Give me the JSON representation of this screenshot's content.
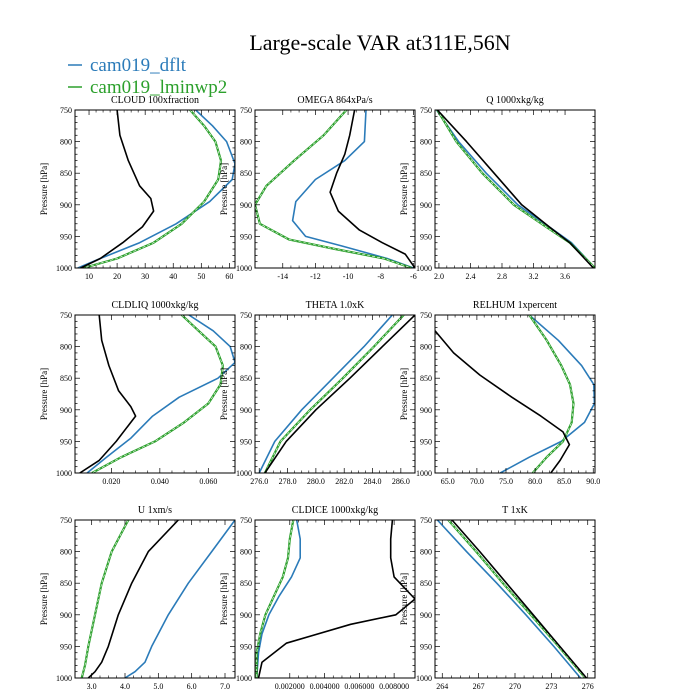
{
  "figure": {
    "title": "Large-scale VAR at311E,56N",
    "legend": [
      {
        "label": "cam019_dflt",
        "color": "#2b7bb9"
      },
      {
        "label": "cam019_lminwp2",
        "color": "#2ca02c"
      }
    ],
    "control_color": "#000000"
  },
  "chart_data": [
    {
      "type": "line",
      "title": "CLOUD  100xfraction",
      "ylabel": "Pressure [hPa]",
      "xlim": [
        5,
        62
      ],
      "ylim": [
        1000,
        750
      ],
      "xticks": [
        10,
        20,
        30,
        40,
        50,
        60
      ],
      "xticklabels": [
        "10",
        "20",
        "30",
        "40",
        "50",
        "60"
      ],
      "yticks": [
        750,
        800,
        850,
        900,
        950,
        1000
      ],
      "series": [
        {
          "name": "cam019_dflt",
          "color": "#2b7bb9",
          "x": [
            48,
            54,
            59,
            62,
            61,
            53,
            41,
            28,
            14,
            6
          ],
          "y": [
            750,
            775,
            800,
            835,
            860,
            895,
            930,
            960,
            985,
            1000
          ]
        },
        {
          "name": "cam019_lminwp2",
          "color": "#2ca02c",
          "dashed": true,
          "x": [
            46,
            51,
            55,
            57,
            56,
            51,
            43,
            33,
            20,
            8
          ],
          "y": [
            750,
            775,
            800,
            830,
            860,
            895,
            930,
            960,
            985,
            1000
          ]
        },
        {
          "name": "control",
          "color": "#000000",
          "x": [
            20,
            21,
            24,
            28,
            32,
            33,
            29,
            22,
            14,
            7
          ],
          "y": [
            750,
            790,
            830,
            870,
            890,
            910,
            935,
            960,
            985,
            1000
          ]
        }
      ]
    },
    {
      "type": "line",
      "title": "OMEGA  864xPa/s",
      "ylabel": "",
      "xlim": [
        -15.7,
        -5.9
      ],
      "ylim": [
        1000,
        750
      ],
      "xticks": [
        -14,
        -12,
        -10,
        -8,
        -6
      ],
      "xticklabels": [
        "-14",
        "-12",
        "-10",
        "-8",
        "-6"
      ],
      "yticks": [
        750,
        800,
        850,
        900,
        950,
        1000
      ],
      "series": [
        {
          "name": "cam019_dflt",
          "color": "#2b7bb9",
          "x": [
            -8.9,
            -9.0,
            -10.2,
            -12.0,
            -13.2,
            -13.4,
            -12.6,
            -10.4,
            -7.6,
            -6.0
          ],
          "y": [
            750,
            800,
            830,
            860,
            895,
            925,
            950,
            965,
            985,
            1000
          ]
        },
        {
          "name": "cam019_lminwp2",
          "color": "#2ca02c",
          "dashed": true,
          "x": [
            -10.1,
            -11.5,
            -13.3,
            -15.0,
            -15.7,
            -15.4,
            -13.6,
            -10.8,
            -7.8,
            -6.1
          ],
          "y": [
            750,
            790,
            830,
            870,
            900,
            930,
            955,
            970,
            985,
            1000
          ]
        },
        {
          "name": "control",
          "color": "#000000",
          "x": [
            -9.6,
            -9.9,
            -10.2,
            -10.7,
            -11.1,
            -10.6,
            -9.3,
            -7.9,
            -6.5,
            -5.9
          ],
          "y": [
            750,
            790,
            820,
            850,
            880,
            910,
            940,
            960,
            978,
            1000
          ]
        }
      ]
    },
    {
      "type": "line",
      "title": "Q  1000xkg/kg",
      "ylabel": "",
      "xlim": [
        1.95,
        3.98
      ],
      "ylim": [
        1000,
        750
      ],
      "xticks": [
        2.0,
        2.4,
        2.8,
        3.2,
        3.6
      ],
      "xticklabels": [
        "2.0",
        "2.4",
        "2.8",
        "3.2",
        "3.6"
      ],
      "yticks": [
        750,
        800,
        850,
        900,
        950,
        1000
      ],
      "series": [
        {
          "name": "cam019_dflt",
          "color": "#2b7bb9",
          "x": [
            1.97,
            2.25,
            2.6,
            3.0,
            3.4,
            3.68,
            3.98
          ],
          "y": [
            750,
            800,
            850,
            900,
            935,
            960,
            1000
          ]
        },
        {
          "name": "cam019_lminwp2",
          "color": "#2ca02c",
          "dashed": true,
          "x": [
            1.98,
            2.22,
            2.55,
            2.95,
            3.36,
            3.66,
            3.98
          ],
          "y": [
            750,
            800,
            850,
            900,
            935,
            960,
            1000
          ]
        },
        {
          "name": "control",
          "color": "#000000",
          "x": [
            1.98,
            2.35,
            2.7,
            3.05,
            3.4,
            3.66,
            3.96
          ],
          "y": [
            750,
            800,
            850,
            900,
            935,
            960,
            1000
          ]
        }
      ]
    },
    {
      "type": "line",
      "title": "CLDLIQ  1000xkg/kg",
      "ylabel": "Pressure [hPa]",
      "xlim": [
        0.005,
        0.071
      ],
      "ylim": [
        1000,
        750
      ],
      "xticks": [
        0.02,
        0.04,
        0.06
      ],
      "xticklabels": [
        "0.020",
        "0.040",
        "0.060"
      ],
      "yticks": [
        750,
        800,
        850,
        900,
        950,
        1000
      ],
      "series": [
        {
          "name": "cam019_dflt",
          "color": "#2b7bb9",
          "x": [
            0.052,
            0.062,
            0.069,
            0.071,
            0.064,
            0.048,
            0.037,
            0.028,
            0.018,
            0.01
          ],
          "y": [
            750,
            775,
            800,
            825,
            850,
            880,
            910,
            945,
            975,
            1000
          ]
        },
        {
          "name": "cam019_lminwp2",
          "color": "#2ca02c",
          "dashed": true,
          "x": [
            0.049,
            0.056,
            0.063,
            0.066,
            0.065,
            0.06,
            0.05,
            0.038,
            0.024,
            0.012
          ],
          "y": [
            750,
            775,
            800,
            830,
            860,
            890,
            920,
            950,
            975,
            1000
          ]
        },
        {
          "name": "control",
          "color": "#000000",
          "x": [
            0.015,
            0.016,
            0.019,
            0.023,
            0.028,
            0.03,
            0.027,
            0.022,
            0.015,
            0.007
          ],
          "y": [
            750,
            790,
            830,
            870,
            895,
            910,
            925,
            950,
            980,
            1000
          ]
        }
      ]
    },
    {
      "type": "line",
      "title": "THETA  1.0xK",
      "ylabel": "",
      "xlim": [
        275.7,
        287.0
      ],
      "ylim": [
        1000,
        750
      ],
      "xticks": [
        276.0,
        278.0,
        280.0,
        282.0,
        284.0,
        286.0
      ],
      "xticklabels": [
        "276.0",
        "278.0",
        "280.0",
        "282.0",
        "284.0",
        "286.0"
      ],
      "yticks": [
        750,
        800,
        850,
        900,
        950,
        1000
      ],
      "series": [
        {
          "name": "cam019_dflt",
          "color": "#2b7bb9",
          "x": [
            276.0,
            277.1,
            279.0,
            281.2,
            283.4,
            285.4
          ],
          "y": [
            1000,
            950,
            900,
            850,
            800,
            750
          ]
        },
        {
          "name": "cam019_lminwp2",
          "color": "#2ca02c",
          "dashed": true,
          "x": [
            276.4,
            277.5,
            279.6,
            281.9,
            284.1,
            286.2
          ],
          "y": [
            1000,
            950,
            900,
            850,
            800,
            750
          ]
        },
        {
          "name": "control",
          "color": "#000000",
          "x": [
            276.4,
            277.9,
            280.0,
            282.4,
            284.7,
            287.0
          ],
          "y": [
            1000,
            950,
            900,
            850,
            800,
            750
          ]
        }
      ]
    },
    {
      "type": "line",
      "title": "RELHUM  1xpercent",
      "ylabel": "",
      "xlim": [
        62.8,
        90.3
      ],
      "ylim": [
        1000,
        750
      ],
      "xticks": [
        65.0,
        70.0,
        75.0,
        80.0,
        85.0,
        90.0
      ],
      "xticklabels": [
        "65.0",
        "70.0",
        "75.0",
        "80.0",
        "85.0",
        "90.0"
      ],
      "yticks": [
        750,
        800,
        850,
        900,
        950,
        1000
      ],
      "series": [
        {
          "name": "cam019_dflt",
          "color": "#2b7bb9",
          "x": [
            79,
            84,
            88,
            90.1,
            90.2,
            88.5,
            84.5,
            79,
            74
          ],
          "y": [
            750,
            790,
            830,
            860,
            890,
            920,
            950,
            975,
            1000
          ]
        },
        {
          "name": "cam019_lminwp2",
          "color": "#2ca02c",
          "dashed": true,
          "x": [
            79,
            82,
            84.5,
            86,
            86.6,
            86.3,
            84.8,
            82,
            79.6
          ],
          "y": [
            750,
            790,
            830,
            860,
            890,
            920,
            950,
            975,
            1000
          ]
        },
        {
          "name": "control",
          "color": "#000000",
          "x": [
            62.8,
            66,
            70.5,
            76,
            81,
            84.8,
            85.9,
            84.3,
            82.7
          ],
          "y": [
            775,
            810,
            845,
            880,
            910,
            935,
            955,
            980,
            1000
          ]
        }
      ]
    },
    {
      "type": "line",
      "title": "U  1xm/s",
      "ylabel": "Pressure [hPa]",
      "xlim": [
        2.5,
        7.3
      ],
      "ylim": [
        1000,
        750
      ],
      "xticks": [
        3.0,
        4.0,
        5.0,
        6.0,
        7.0
      ],
      "xticklabels": [
        "3.0",
        "4.0",
        "5.0",
        "6.0",
        "7.0"
      ],
      "yticks": [
        750,
        800,
        850,
        900,
        950,
        1000
      ],
      "series": [
        {
          "name": "cam019_dflt",
          "color": "#2b7bb9",
          "x": [
            7.3,
            6.6,
            5.9,
            5.3,
            4.8,
            4.6,
            4.3,
            4.0
          ],
          "y": [
            750,
            800,
            850,
            900,
            950,
            975,
            990,
            1000
          ]
        },
        {
          "name": "cam019_lminwp2",
          "color": "#2ca02c",
          "dashed": true,
          "x": [
            4.1,
            3.6,
            3.3,
            3.1,
            2.9,
            2.8,
            2.7
          ],
          "y": [
            750,
            800,
            850,
            900,
            950,
            980,
            1000
          ]
        },
        {
          "name": "control",
          "color": "#000000",
          "x": [
            5.6,
            4.7,
            4.2,
            3.8,
            3.5,
            3.3,
            3.1,
            2.9
          ],
          "y": [
            750,
            800,
            850,
            900,
            950,
            975,
            990,
            1000
          ]
        }
      ]
    },
    {
      "type": "line",
      "title": "CLDICE  1000xkg/kg",
      "ylabel": "",
      "xlim": [
        0.0,
        0.0092
      ],
      "ylim": [
        1000,
        750
      ],
      "xticks": [
        0.002,
        0.004,
        0.006,
        0.008
      ],
      "xticklabels": [
        "0.002000",
        "0.004000",
        "0.006000",
        "0.008000"
      ],
      "yticks": [
        750,
        800,
        850,
        900,
        950,
        1000
      ],
      "series": [
        {
          "name": "cam019_dflt",
          "color": "#2b7bb9",
          "x": [
            0.0024,
            0.0026,
            0.0026,
            0.0021,
            0.0014,
            0.0008,
            0.0004,
            0.0002,
            0.0001
          ],
          "y": [
            750,
            780,
            810,
            840,
            870,
            900,
            930,
            960,
            1000
          ]
        },
        {
          "name": "cam019_lminwp2",
          "color": "#2ca02c",
          "dashed": true,
          "x": [
            0.0022,
            0.002,
            0.0019,
            0.0016,
            0.0011,
            0.0006,
            0.0003,
            0.0001,
            0.0001
          ],
          "y": [
            750,
            780,
            810,
            840,
            870,
            900,
            930,
            960,
            1000
          ]
        },
        {
          "name": "control",
          "color": "#000000",
          "x": [
            0.0079,
            0.0078,
            0.0078,
            0.008,
            0.0092,
            0.0081,
            0.0055,
            0.0018,
            0.0004,
            0.0002
          ],
          "y": [
            750,
            780,
            810,
            840,
            875,
            900,
            915,
            945,
            975,
            1000
          ]
        }
      ]
    },
    {
      "type": "line",
      "title": "T  1xK",
      "ylabel": "",
      "xlim": [
        263.4,
        276.6
      ],
      "ylim": [
        1000,
        750
      ],
      "xticks": [
        264,
        267,
        270,
        273,
        276
      ],
      "xticklabels": [
        "264",
        "267",
        "270",
        "273",
        "276"
      ],
      "yticks": [
        750,
        800,
        850,
        900,
        950,
        1000
      ],
      "series": [
        {
          "name": "cam019_dflt",
          "color": "#2b7bb9",
          "x": [
            263.6,
            266.0,
            268.5,
            270.9,
            273.2,
            275.4
          ],
          "y": [
            750,
            800,
            850,
            900,
            950,
            1000
          ]
        },
        {
          "name": "cam019_lminwp2",
          "color": "#2ca02c",
          "dashed": true,
          "x": [
            264.5,
            266.8,
            269.0,
            271.3,
            273.6,
            275.8
          ],
          "y": [
            750,
            800,
            850,
            900,
            950,
            1000
          ]
        },
        {
          "name": "control",
          "color": "#000000",
          "x": [
            264.8,
            267.1,
            269.3,
            271.5,
            273.7,
            275.9
          ],
          "y": [
            750,
            800,
            850,
            900,
            950,
            1000
          ]
        }
      ]
    }
  ]
}
